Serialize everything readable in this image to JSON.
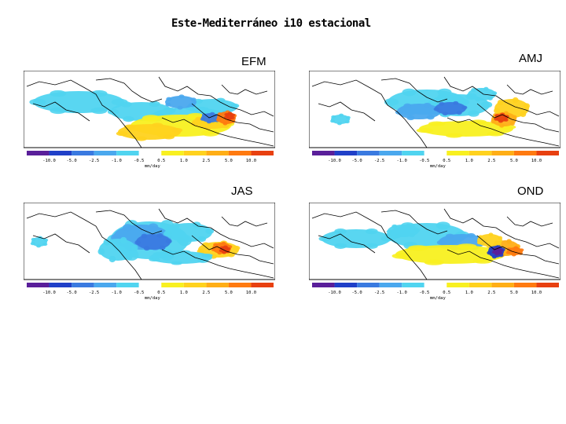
{
  "title": "Este-Mediterráneo i10 estacional",
  "colorbar": {
    "ticks": [
      "-10.0",
      "-5.0",
      "-2.5",
      "-1.0",
      "-0.5",
      "0.5",
      "1.0",
      "2.5",
      "5.0",
      "10.0"
    ],
    "units": "mm/day",
    "colors": [
      "#5a1f9a",
      "#2040c8",
      "#3a7ae0",
      "#4aa8ee",
      "#50d4f0",
      "#ffffff",
      "#f8f020",
      "#ffd21e",
      "#ffae16",
      "#ff7a10",
      "#e84010"
    ]
  },
  "panels": [
    {
      "label": "EFM"
    },
    {
      "label": "AMJ"
    },
    {
      "label": "JAS"
    },
    {
      "label": "OND"
    }
  ]
}
